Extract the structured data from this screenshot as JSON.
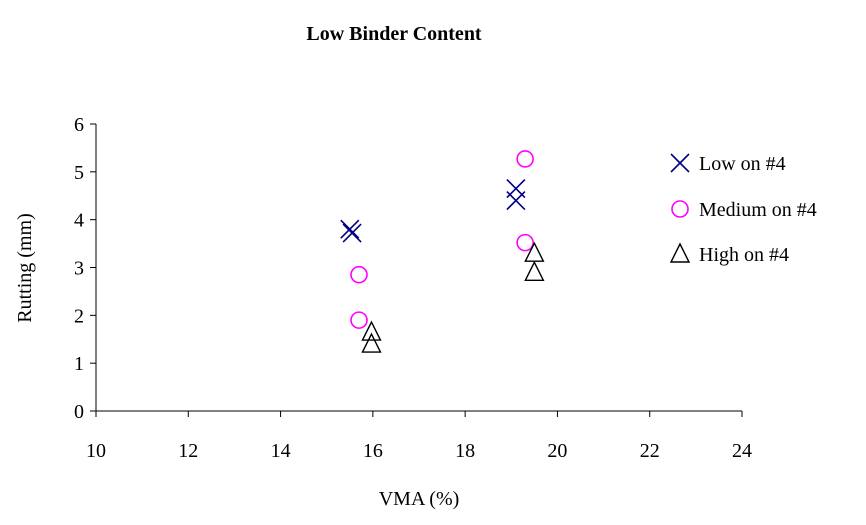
{
  "chart_data": {
    "type": "scatter",
    "title": "Low Binder Content",
    "xlabel": "VMA (%)",
    "ylabel": "Rutting (mm)",
    "xlim": [
      10,
      24
    ],
    "ylim": [
      0,
      6
    ],
    "xticks": [
      "10",
      "12",
      "14",
      "16",
      "18",
      "20",
      "22",
      "24"
    ],
    "yticks": [
      "0",
      "1",
      "2",
      "3",
      "4",
      "5",
      "6"
    ],
    "grid": false,
    "legend_position": "right",
    "series": [
      {
        "name": "Low on #4",
        "marker": "x",
        "color": "#000080",
        "points": [
          {
            "x": 15.5,
            "y": 3.8
          },
          {
            "x": 15.55,
            "y": 3.72
          },
          {
            "x": 19.1,
            "y": 4.65
          },
          {
            "x": 19.1,
            "y": 4.4
          }
        ]
      },
      {
        "name": "Medium on #4",
        "marker": "circle",
        "color": "#ff00ff",
        "points": [
          {
            "x": 15.7,
            "y": 2.85
          },
          {
            "x": 15.7,
            "y": 1.9
          },
          {
            "x": 19.3,
            "y": 5.27
          },
          {
            "x": 19.3,
            "y": 3.52
          }
        ]
      },
      {
        "name": "High on #4",
        "marker": "triangle",
        "color": "#000000",
        "points": [
          {
            "x": 15.97,
            "y": 1.65
          },
          {
            "x": 15.97,
            "y": 1.4
          },
          {
            "x": 19.5,
            "y": 3.3
          },
          {
            "x": 19.5,
            "y": 2.9
          }
        ]
      }
    ]
  }
}
